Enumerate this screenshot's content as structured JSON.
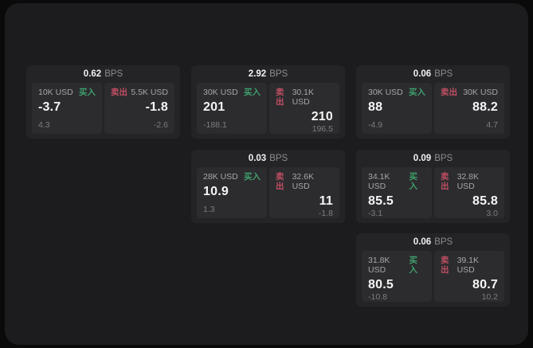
{
  "colors": {
    "background": "#0a0a0a",
    "surface": "#1c1c1e",
    "card": "#242427",
    "panel": "#2c2c2f",
    "buy_green": "#3fa06c",
    "sell_red": "#bf4e62",
    "value_white": "#f5f5f5",
    "label_grey": "#a6a6a6",
    "sub_grey": "#7d7d7d"
  },
  "cards": [
    {
      "bps_value": "0.62",
      "bps_unit": "BPS",
      "buy": {
        "amount": "10K USD",
        "tag": "买入",
        "value": "-3.7",
        "sub": "4.3"
      },
      "sell": {
        "tag": "卖出",
        "amount": "5.5K USD",
        "value": "-1.8",
        "sub": "-2.6"
      }
    },
    {
      "bps_value": "2.92",
      "bps_unit": "BPS",
      "buy": {
        "amount": "30K USD",
        "tag": "买入",
        "value": "201",
        "sub": "-188.1"
      },
      "sell": {
        "tag": "卖出",
        "amount": "30.1K USD",
        "value": "210",
        "sub": "196.5"
      }
    },
    {
      "bps_value": "0.06",
      "bps_unit": "BPS",
      "buy": {
        "amount": "30K USD",
        "tag": "买入",
        "value": "88",
        "sub": "-4.9"
      },
      "sell": {
        "tag": "卖出",
        "amount": "30K USD",
        "value": "88.2",
        "sub": "4.7"
      }
    },
    {
      "bps_value": "0.03",
      "bps_unit": "BPS",
      "buy": {
        "amount": "28K USD",
        "tag": "买入",
        "value": "10.9",
        "sub": "1.3"
      },
      "sell": {
        "tag": "卖出",
        "amount": "32.6K USD",
        "value": "11",
        "sub": "-1.8"
      }
    },
    {
      "bps_value": "0.09",
      "bps_unit": "BPS",
      "buy": {
        "amount": "34.1K USD",
        "tag": "买入",
        "value": "85.5",
        "sub": "-3.1"
      },
      "sell": {
        "tag": "卖出",
        "amount": "32.8K USD",
        "value": "85.8",
        "sub": "3.0"
      }
    },
    {
      "bps_value": "0.06",
      "bps_unit": "BPS",
      "buy": {
        "amount": "31.8K USD",
        "tag": "买入",
        "value": "80.5",
        "sub": "-10.8"
      },
      "sell": {
        "tag": "卖出",
        "amount": "39.1K USD",
        "value": "80.7",
        "sub": "10.2"
      }
    }
  ]
}
